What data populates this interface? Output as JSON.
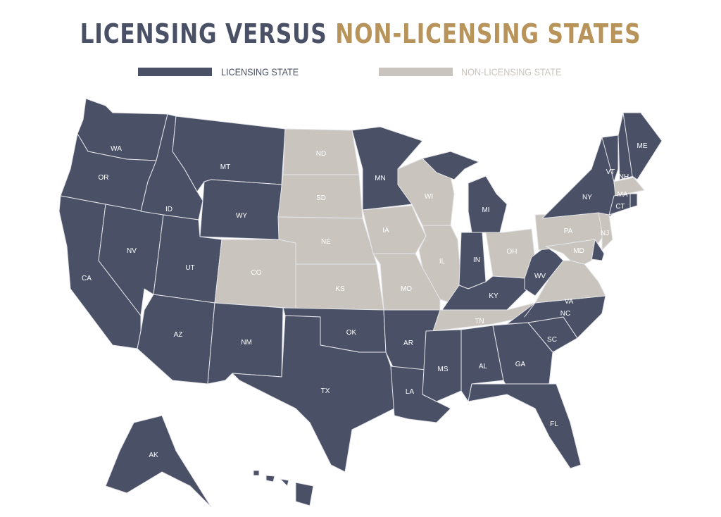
{
  "title": {
    "part1": "LICENSING VERSUS",
    "part2": "NON-LICENSING STATES"
  },
  "colors": {
    "licensing": "#4a5166",
    "non_licensing": "#c9c5be",
    "title_gold": "#b8935a",
    "border": "#e6e6ea"
  },
  "legend": [
    {
      "label": "LICENSING STATE",
      "status": "licensing"
    },
    {
      "label": "NON-LICENSING STATE",
      "status": "non_licensing"
    }
  ],
  "states": {
    "WA": "licensing",
    "OR": "licensing",
    "CA": "licensing",
    "NV": "licensing",
    "ID": "licensing",
    "MT": "licensing",
    "WY": "licensing",
    "UT": "licensing",
    "AZ": "licensing",
    "NM": "licensing",
    "TX": "licensing",
    "OK": "licensing",
    "AR": "licensing",
    "LA": "licensing",
    "MS": "licensing",
    "AL": "licensing",
    "GA": "licensing",
    "FL": "licensing",
    "SC": "licensing",
    "NC": "licensing",
    "KY": "licensing",
    "IN": "licensing",
    "MI": "licensing",
    "MN": "licensing",
    "WV": "licensing",
    "DE": "licensing",
    "NY": "licensing",
    "VT": "licensing",
    "NH": "licensing",
    "ME": "licensing",
    "CT": "licensing",
    "RI": "licensing",
    "AK": "licensing",
    "HI": "licensing",
    "ND": "non_licensing",
    "SD": "non_licensing",
    "NE": "non_licensing",
    "KS": "non_licensing",
    "CO": "non_licensing",
    "IA": "non_licensing",
    "MO": "non_licensing",
    "WI": "non_licensing",
    "IL": "non_licensing",
    "OH": "non_licensing",
    "PA": "non_licensing",
    "NJ": "non_licensing",
    "MD": "non_licensing",
    "VA": "non_licensing",
    "TN": "non_licensing",
    "MA": "non_licensing"
  }
}
